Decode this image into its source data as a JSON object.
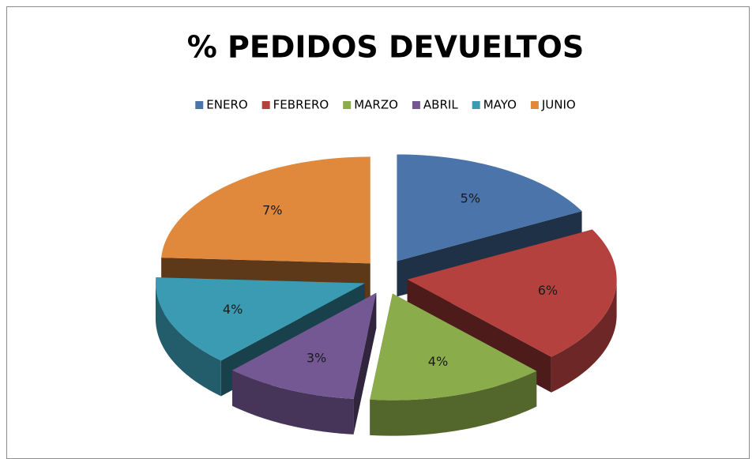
{
  "chart_data": {
    "type": "pie",
    "title": "% PEDIDOS DEVUELTOS",
    "categories": [
      "ENERO",
      "FEBRERO",
      "MARZO",
      "ABRIL",
      "MAYO",
      "JUNIO"
    ],
    "values": [
      5,
      6,
      4,
      3,
      4,
      7
    ],
    "value_labels": [
      "5%",
      "6%",
      "4%",
      "3%",
      "4%",
      "7%"
    ],
    "colors": [
      "#4a74aa",
      "#b5413f",
      "#8aac4b",
      "#745894",
      "#3b9bb2",
      "#e0883c"
    ],
    "legend": "top"
  }
}
